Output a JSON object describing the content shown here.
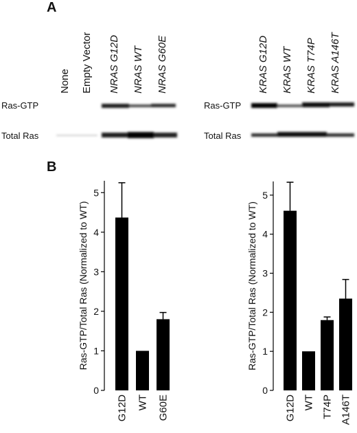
{
  "panels": {
    "a_label": "A",
    "b_label": "B"
  },
  "blot_left": {
    "lanes": [
      "None",
      "Empty Vector",
      "NRAS G12D",
      "NRAS WT",
      "NRAS G60E"
    ],
    "italic": [
      false,
      false,
      true,
      true,
      true
    ],
    "rows": [
      "Ras-GTP",
      "Total Ras"
    ]
  },
  "blot_right": {
    "lanes": [
      "KRAS G12D",
      "KRAS WT",
      "KRAS T74P",
      "KRAS A146T"
    ],
    "italic": [
      true,
      true,
      true,
      true
    ],
    "rows": [
      "Ras-GTP",
      "Total Ras"
    ]
  },
  "chart_data": [
    {
      "type": "bar",
      "categories": [
        "G12D",
        "WT",
        "G60E"
      ],
      "values": [
        4.37,
        1.0,
        1.8
      ],
      "error_upper": [
        5.25,
        1.0,
        1.97
      ],
      "ylabel": "Ras-GTP/Total Ras (Normalized to WT)",
      "ylim": [
        0,
        5.3
      ],
      "yticks": [
        "0",
        "1",
        "2",
        "3",
        "4",
        "5"
      ],
      "bar_color": "#000000",
      "grid": false
    },
    {
      "type": "bar",
      "categories": [
        "G12D",
        "WT",
        "T74P",
        "A146T"
      ],
      "values": [
        4.6,
        1.0,
        1.8,
        2.35
      ],
      "error_upper": [
        5.33,
        1.0,
        1.88,
        2.84
      ],
      "ylabel": "Ras-GTP/Total Ras (Normalized to WT)",
      "ylim": [
        0,
        5.35
      ],
      "yticks": [
        "0",
        "1",
        "2",
        "3",
        "4",
        "5"
      ],
      "bar_color": "#000000",
      "grid": false
    }
  ]
}
